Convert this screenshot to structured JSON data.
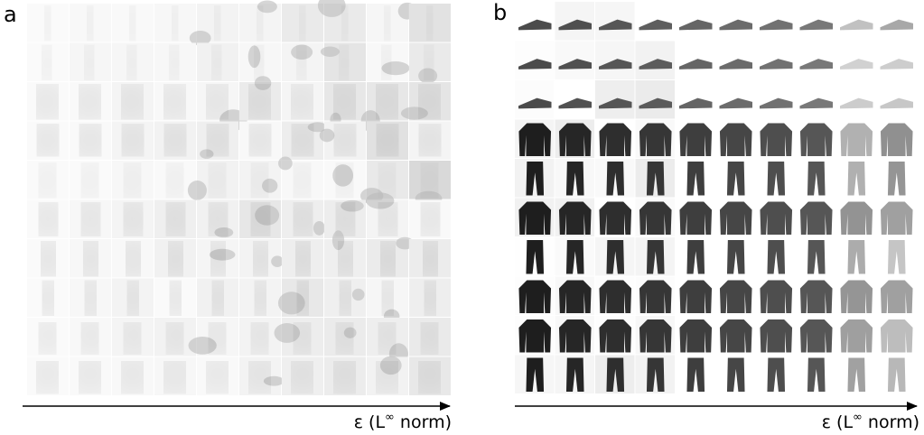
{
  "panels": [
    {
      "label": "a",
      "axis_label": {
        "prefix": "ε (L",
        "superscript": "∞",
        "suffix": " norm)"
      }
    },
    {
      "label": "b",
      "axis_label": {
        "prefix": "ε (L",
        "superscript": "∞",
        "suffix": " norm)"
      }
    }
  ]
}
